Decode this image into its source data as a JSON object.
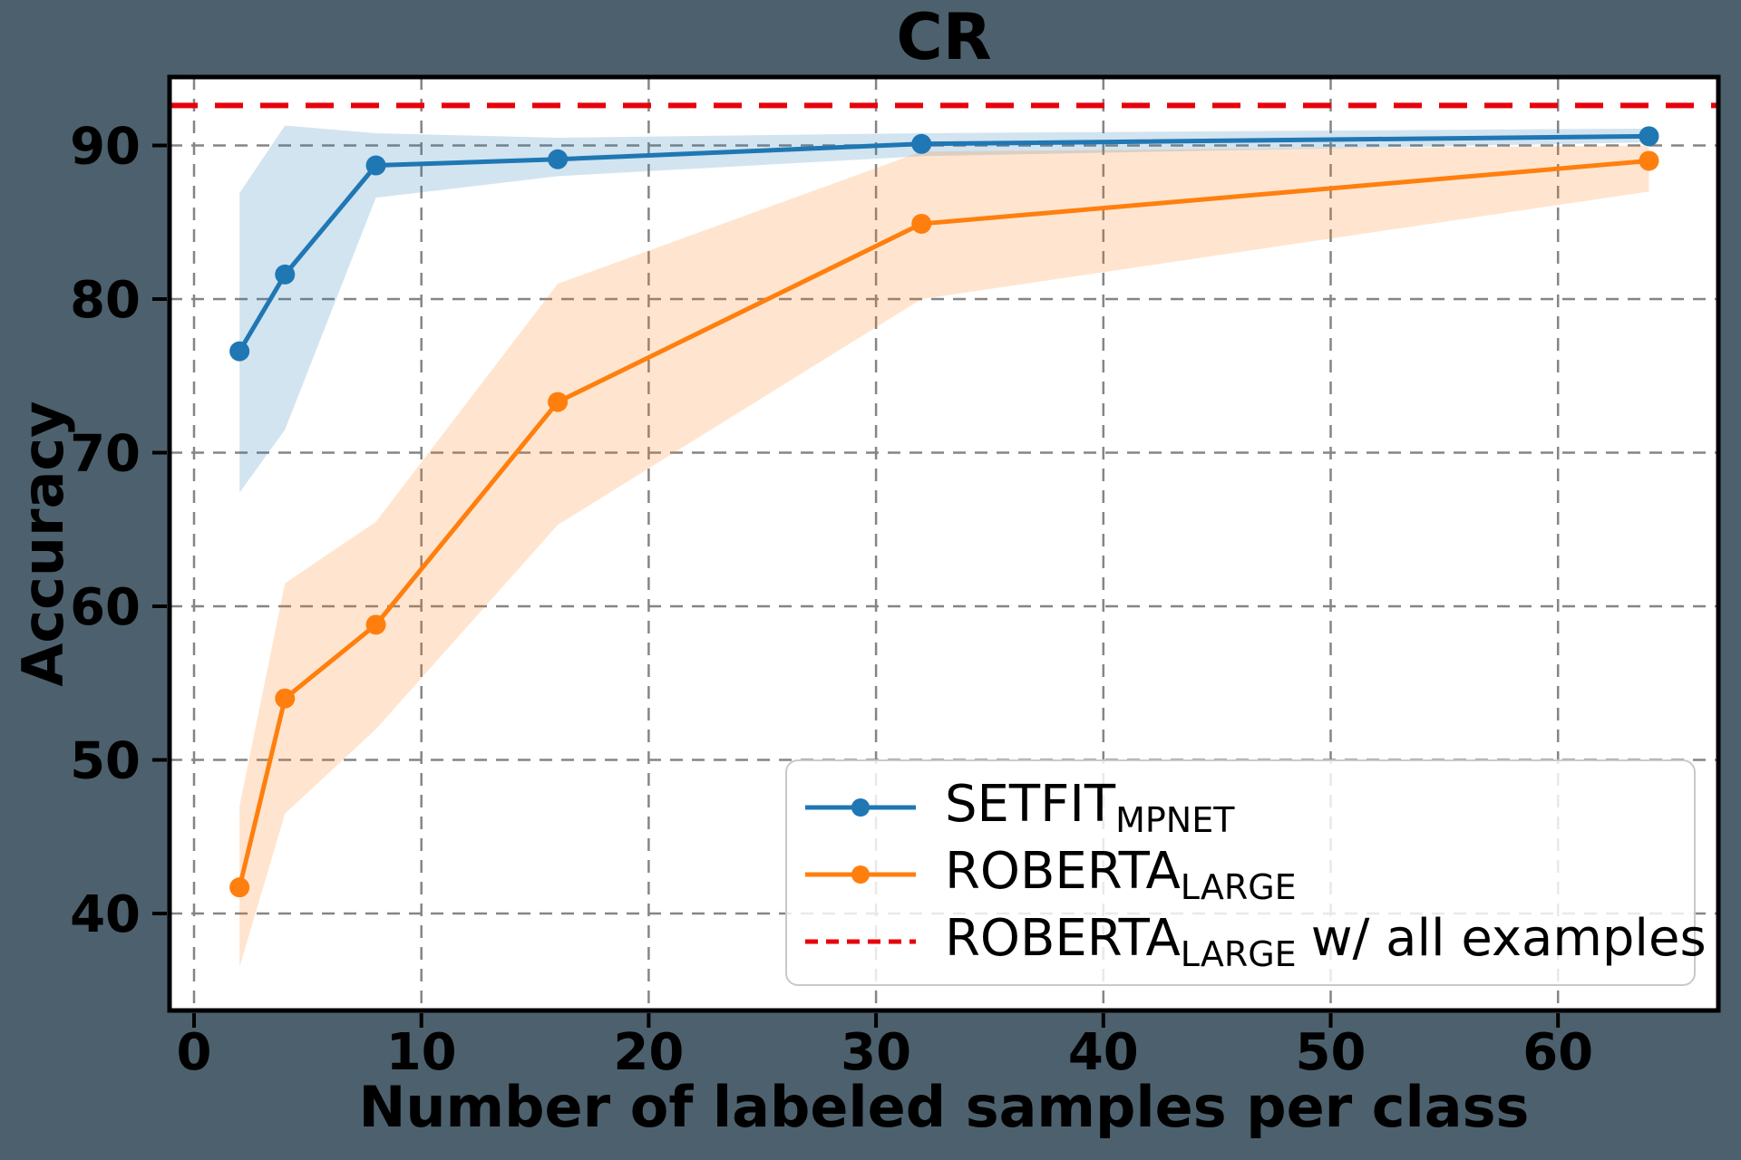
{
  "chart_data": {
    "type": "line",
    "title": "CR",
    "xlabel": "Number of labeled samples per class",
    "ylabel": "Accuracy",
    "x_ticks": [
      0,
      10,
      20,
      30,
      40,
      50,
      60
    ],
    "y_ticks": [
      40,
      50,
      60,
      70,
      80,
      90
    ],
    "xlim": [
      -1.1,
      67.1
    ],
    "ylim": [
      33.8,
      94.5
    ],
    "grid": true,
    "legend_position": "lower right",
    "x": [
      2,
      4,
      8,
      16,
      32,
      64
    ],
    "series": [
      {
        "name": "SETFIT_MPNET",
        "color": "#1f77b4",
        "values": [
          76.6,
          81.6,
          88.7,
          89.1,
          90.1,
          90.6
        ],
        "band_upper": [
          86.9,
          91.3,
          90.8,
          90.5,
          90.8,
          91.1
        ],
        "band_lower": [
          67.4,
          71.5,
          86.6,
          88.0,
          89.3,
          90.2
        ]
      },
      {
        "name": "ROBERTA_LARGE",
        "color": "#ff7f0e",
        "values": [
          41.7,
          54.0,
          58.8,
          73.3,
          84.9,
          89.0
        ],
        "band_upper": [
          47.0,
          61.5,
          65.5,
          81.0,
          89.6,
          90.0
        ],
        "band_lower": [
          36.5,
          46.5,
          52.0,
          65.3,
          80.0,
          87.0
        ]
      }
    ],
    "baseline": {
      "name": "ROBERTA_LARGE w/ all examples",
      "value": 92.6,
      "color": "#e8000b",
      "style": "dashed"
    },
    "legend": {
      "items": [
        {
          "main": "SETFIT",
          "sub": "MPNET",
          "suffix": "",
          "handle": "line-marker",
          "color": "#1f77b4"
        },
        {
          "main": "ROBERTA",
          "sub": "LARGE",
          "suffix": "",
          "handle": "line-marker",
          "color": "#ff7f0e"
        },
        {
          "main": "ROBERTA",
          "sub": "LARGE",
          "suffix": "w/ all examples",
          "handle": "dashed-line",
          "color": "#e8000b"
        }
      ]
    }
  }
}
